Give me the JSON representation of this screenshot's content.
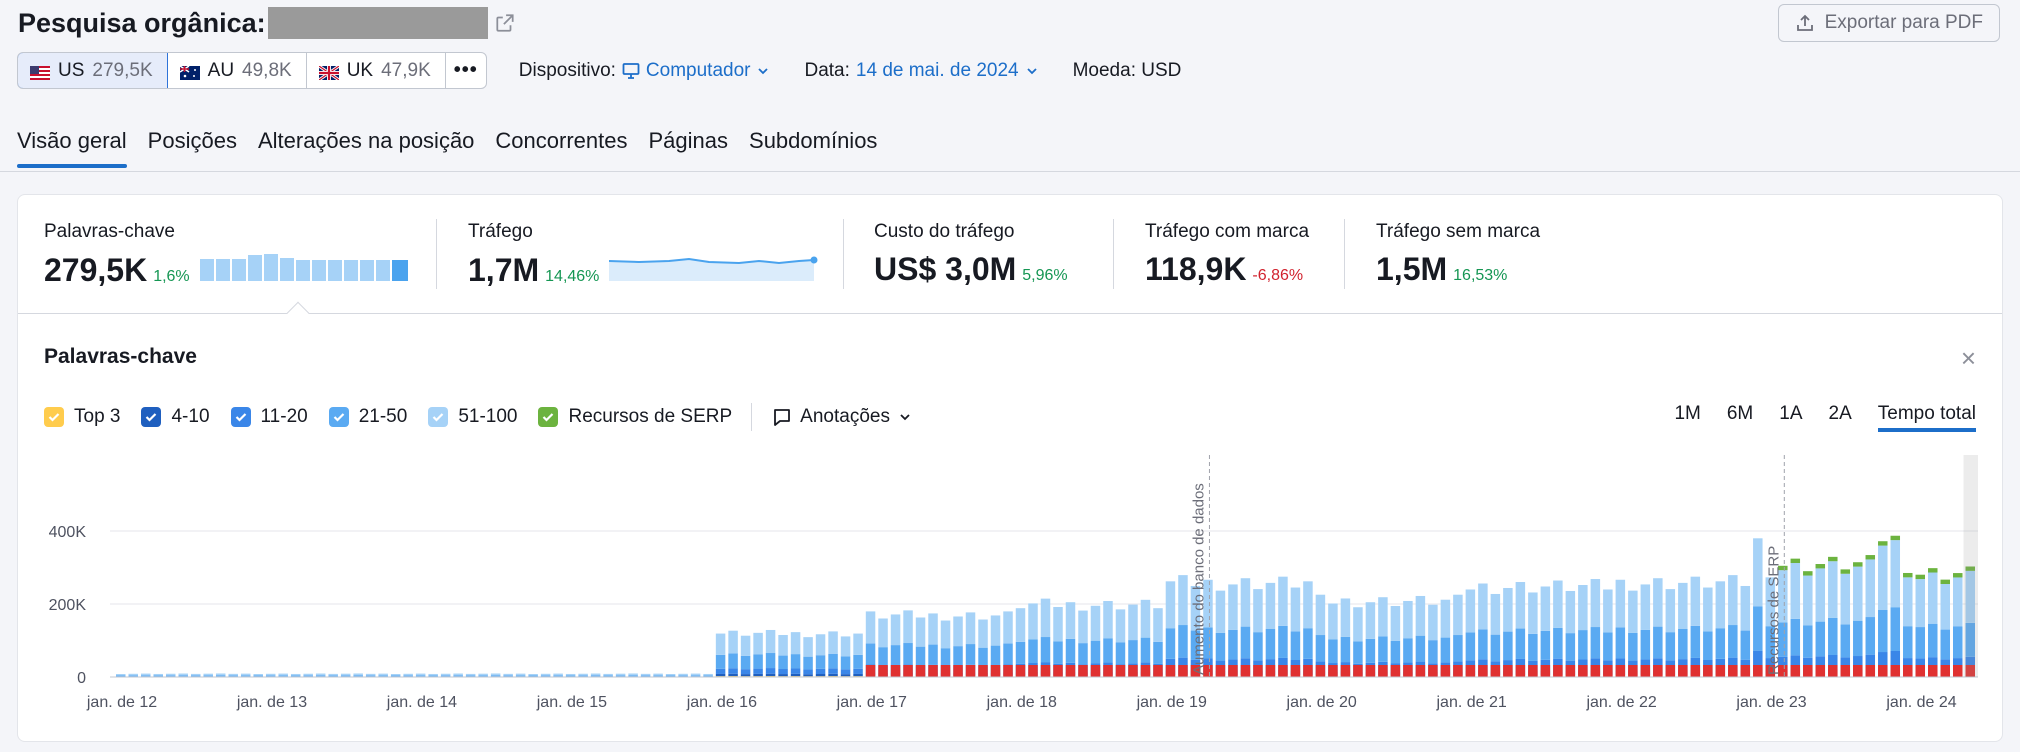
{
  "header": {
    "title": "Pesquisa orgânica:",
    "export_label": "Exportar para PDF"
  },
  "databases": [
    {
      "code": "US",
      "value": "279,5K",
      "active": true
    },
    {
      "code": "AU",
      "value": "49,8K",
      "active": false
    },
    {
      "code": "UK",
      "value": "47,9K",
      "active": false
    }
  ],
  "more_label": "•••",
  "filters": {
    "device_label": "Dispositivo:",
    "device_value": "Computador",
    "date_label": "Data:",
    "date_value": "14 de mai. de 2024",
    "currency": "Moeda: USD"
  },
  "tabs": [
    "Visão geral",
    "Posições",
    "Alterações na posição",
    "Concorrentes",
    "Páginas",
    "Subdomínios"
  ],
  "metrics": [
    {
      "label": "Palavras-chave",
      "value": "279,5K",
      "delta": "1,6%",
      "trend": "pos"
    },
    {
      "label": "Tráfego",
      "value": "1,7M",
      "delta": "14,46%",
      "trend": "pos"
    },
    {
      "label": "Custo do tráfego",
      "value": "US$ 3,0M",
      "delta": "5,96%",
      "trend": "pos"
    },
    {
      "label": "Tráfego com marca",
      "value": "118,9K",
      "delta": "-6,86%",
      "trend": "neg"
    },
    {
      "label": "Tráfego sem marca",
      "value": "1,5M",
      "delta": "16,53%",
      "trend": "pos"
    }
  ],
  "panel": {
    "title": "Palavras-chave",
    "close": "×",
    "annotations_label": "Anotações"
  },
  "legend": [
    {
      "label": "Top 3",
      "color": "#ffcc4d"
    },
    {
      "label": "4-10",
      "color": "#1f5fbf"
    },
    {
      "label": "11-20",
      "color": "#3a86e8"
    },
    {
      "label": "21-50",
      "color": "#5aaaf2"
    },
    {
      "label": "51-100",
      "color": "#a6d2f7"
    },
    {
      "label": "Recursos de SERP",
      "color": "#6cb33f"
    }
  ],
  "ranges": [
    {
      "label": "1M",
      "active": false
    },
    {
      "label": "6M",
      "active": false
    },
    {
      "label": "1A",
      "active": false
    },
    {
      "label": "2A",
      "active": false
    },
    {
      "label": "Tempo total",
      "active": true
    }
  ],
  "chart_data": {
    "type": "bar",
    "stacked": true,
    "yticks": [
      "0",
      "200K",
      "400K"
    ],
    "ylim": [
      0,
      450000
    ],
    "xticks": [
      "jan. de 12",
      "jan. de 13",
      "jan. de 14",
      "jan. de 15",
      "jan. de 16",
      "jan. de 17",
      "jan. de 18",
      "jan. de 19",
      "jan. de 20",
      "jan. de 21",
      "jan. de 22",
      "jan. de 23",
      "jan. de 24"
    ],
    "annotations": [
      {
        "label": "Aumento do banco de dados",
        "x": "2019-04"
      },
      {
        "label": "Recursos de SERP",
        "x": "2023-02"
      }
    ],
    "series_names": [
      "Top 3",
      "4-10",
      "11-20",
      "21-50",
      "51-100",
      "Recursos de SERP"
    ],
    "totals_segments": [
      {
        "from": "2012-01",
        "to": "2015-12",
        "total": 9000
      },
      {
        "from": "2016-01",
        "to": "2016-12",
        "total": 120000
      },
      {
        "from": "2017-01",
        "to": "2017-12",
        "total": 170000
      },
      {
        "from": "2018-01",
        "to": "2018-12",
        "total": 200000
      },
      {
        "from": "2019-01",
        "to": "2019-12",
        "total": 260000
      },
      {
        "from": "2020-01",
        "to": "2020-12",
        "total": 210000
      },
      {
        "from": "2021-01",
        "to": "2021-12",
        "total": 250000
      },
      {
        "from": "2022-01",
        "to": "2022-12",
        "total": 260000
      },
      {
        "from": "2023-01",
        "to": "2023-12",
        "total": 300000
      },
      {
        "from": "2024-01",
        "to": "2024-05",
        "total": 275000
      }
    ]
  }
}
